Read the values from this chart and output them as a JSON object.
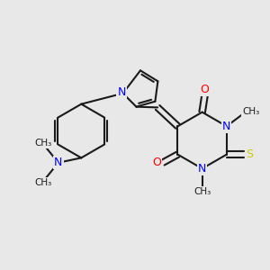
{
  "bg_color": "#e8e8e8",
  "bond_color": "#1a1a1a",
  "N_color": "#0000ff",
  "O_color": "#ff0000",
  "S_color": "#cccc00",
  "line_width": 1.5,
  "figsize": [
    3.0,
    3.0
  ],
  "dpi": 100,
  "xlim": [
    0,
    10
  ],
  "ylim": [
    0,
    10
  ]
}
